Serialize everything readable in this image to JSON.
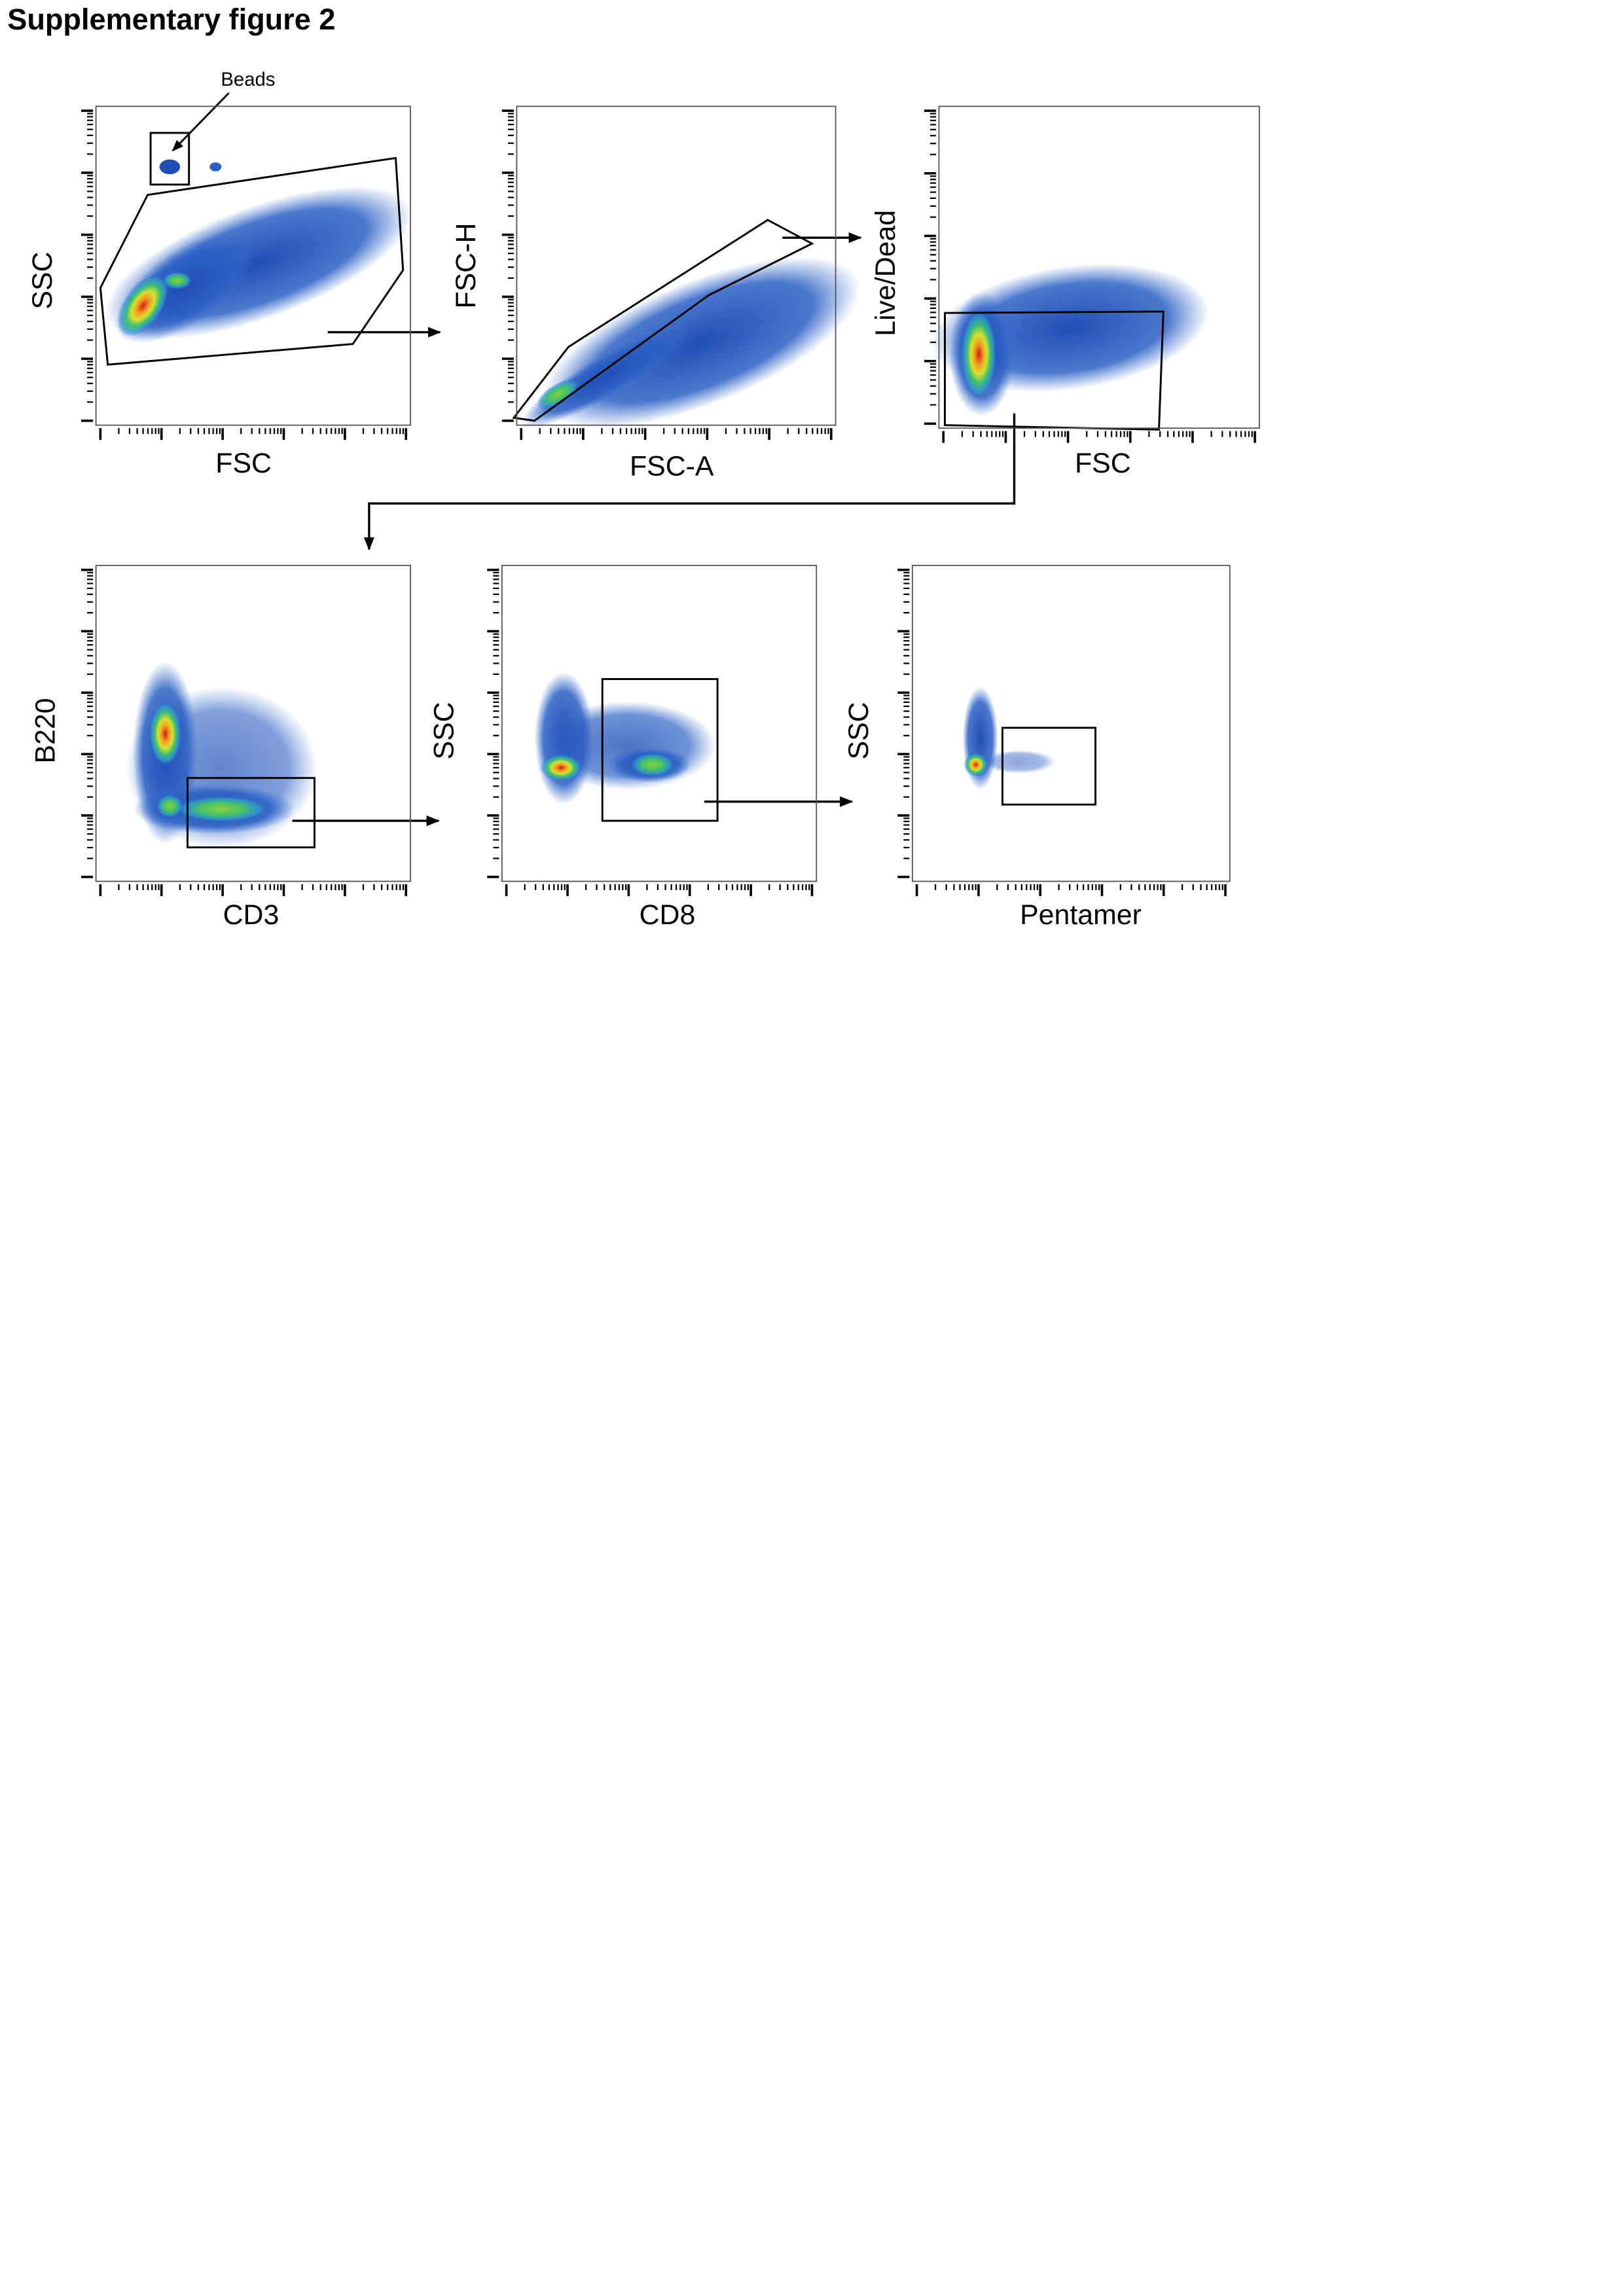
{
  "title": "Supplementary figure 2",
  "annotation": "Beads",
  "panels": [
    {
      "x_label": "FSC",
      "y_label": "SSC"
    },
    {
      "x_label": "FSC-A",
      "y_label": "FSC-H"
    },
    {
      "x_label": "FSC",
      "y_label": "Live/Dead"
    },
    {
      "x_label": "CD3",
      "y_label": "B220"
    },
    {
      "x_label": "CD8",
      "y_label": "SSC"
    },
    {
      "x_label": "Pentamer",
      "y_label": "SSC"
    }
  ]
}
